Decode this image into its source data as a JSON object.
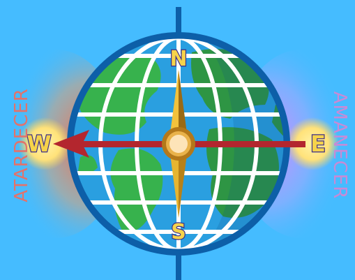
{
  "labels": {
    "left_word": "ATARDECER",
    "right_word": "AMANECER",
    "north": "N",
    "south": "S",
    "west": "W",
    "east": "E"
  },
  "colors": {
    "background": "#45bcff",
    "ocean": "#2a9fe0",
    "land": "#37b24d",
    "land_shade": "#2e9544",
    "rim": "#0d5fa8",
    "grid": "#ffffff",
    "arrow": "#b3262e",
    "needle": "#d9a624",
    "sun": "#ffe88a",
    "letter_fill": "#f6d34a",
    "letter_outline": "#3b2d8a"
  },
  "icons": [
    "globe-icon",
    "compass-needle-icon",
    "west-arrow-icon",
    "sun-icon"
  ]
}
